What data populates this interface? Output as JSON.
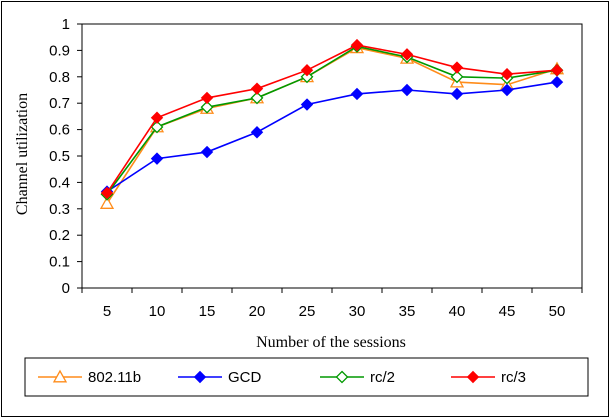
{
  "chart_data": {
    "type": "line",
    "title": "",
    "xlabel": "Number of the sessions",
    "ylabel": "Channel utilization",
    "categories": [
      "5",
      "10",
      "15",
      "20",
      "25",
      "30",
      "35",
      "40",
      "45",
      "50"
    ],
    "ylim": [
      0,
      1
    ],
    "yticks": [
      "0",
      "0.1",
      "0.2",
      "0.3",
      "0.4",
      "0.5",
      "0.6",
      "0.7",
      "0.8",
      "0.9",
      "1"
    ],
    "grid": false,
    "legend_position": "bottom",
    "series": [
      {
        "name": "802.11b",
        "color": "#ff8c1a",
        "marker": "triangle-open",
        "values": [
          0.32,
          0.61,
          0.68,
          0.72,
          0.8,
          0.91,
          0.87,
          0.78,
          0.77,
          0.83
        ]
      },
      {
        "name": "GCD",
        "color": "#0000ff",
        "marker": "diamond-filled",
        "values": [
          0.365,
          0.49,
          0.515,
          0.59,
          0.695,
          0.735,
          0.75,
          0.735,
          0.75,
          0.78
        ]
      },
      {
        "name": "rc/2",
        "color": "#009900",
        "marker": "diamond-open",
        "values": [
          0.355,
          0.61,
          0.685,
          0.72,
          0.8,
          0.915,
          0.875,
          0.8,
          0.795,
          0.825
        ]
      },
      {
        "name": "rc/3",
        "color": "#ff0000",
        "marker": "diamond-filled",
        "values": [
          0.36,
          0.645,
          0.72,
          0.755,
          0.825,
          0.92,
          0.885,
          0.835,
          0.81,
          0.825
        ]
      }
    ]
  }
}
